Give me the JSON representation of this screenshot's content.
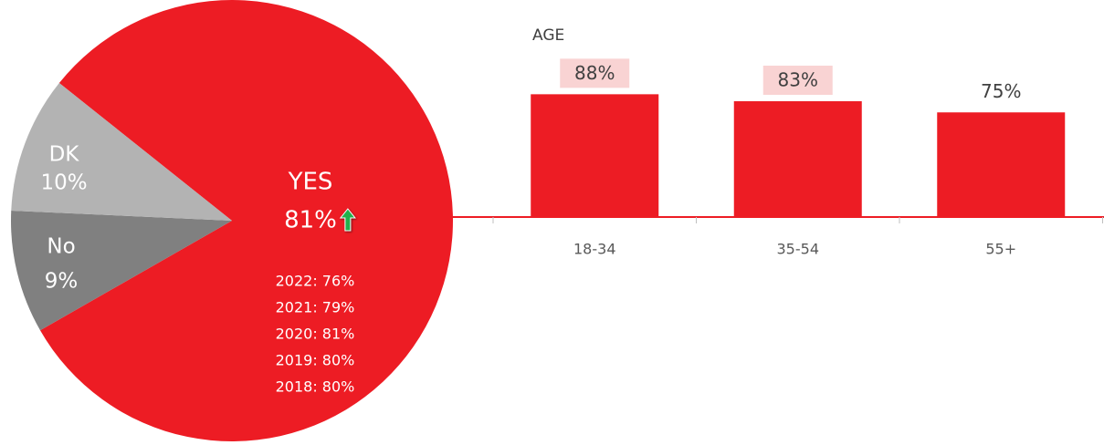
{
  "chart_data": [
    {
      "type": "pie",
      "labels": [
        "YES",
        "No",
        "DK"
      ],
      "values": [
        81,
        9,
        10
      ],
      "value_labels": [
        "81%",
        "9%",
        "10%"
      ],
      "colors": [
        "#ed1c24",
        "#808080",
        "#b3b3b3"
      ],
      "annotations": [
        "2022: 76%",
        "2021: 79%",
        "2020: 81%",
        "2019: 80%",
        "2018: 80%"
      ]
    },
    {
      "type": "bar",
      "title": "AGE",
      "categories": [
        "18-34",
        "35-54",
        "55+"
      ],
      "values": [
        88,
        83,
        75
      ],
      "value_labels": [
        "88%",
        "83%",
        "75%"
      ],
      "label_backgrounds": [
        "#f9d3d3",
        "#f9d3d3",
        null
      ],
      "color": "#ed1c24",
      "ylim": [
        0,
        100
      ]
    }
  ]
}
